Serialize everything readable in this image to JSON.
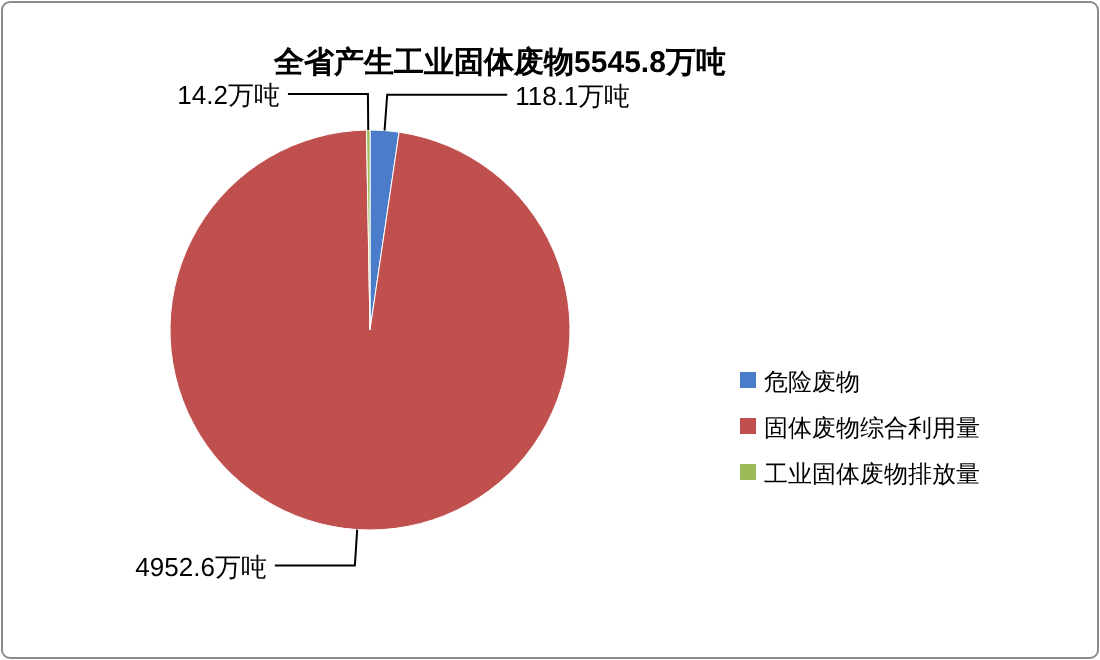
{
  "chart_data": {
    "type": "pie",
    "title": "全省产生工业固体废物5545.8万吨",
    "categories": [
      "危险废物",
      "固体废物综合利用量",
      "工业固体废物排放量"
    ],
    "values": [
      118.1,
      4952.6,
      14.2
    ],
    "colors": [
      "#4a7cc9",
      "#c0504d",
      "#9bbb59"
    ],
    "value_labels": [
      "118.1万吨",
      "4952.6万吨",
      "14.2万吨"
    ],
    "legend": "right"
  }
}
